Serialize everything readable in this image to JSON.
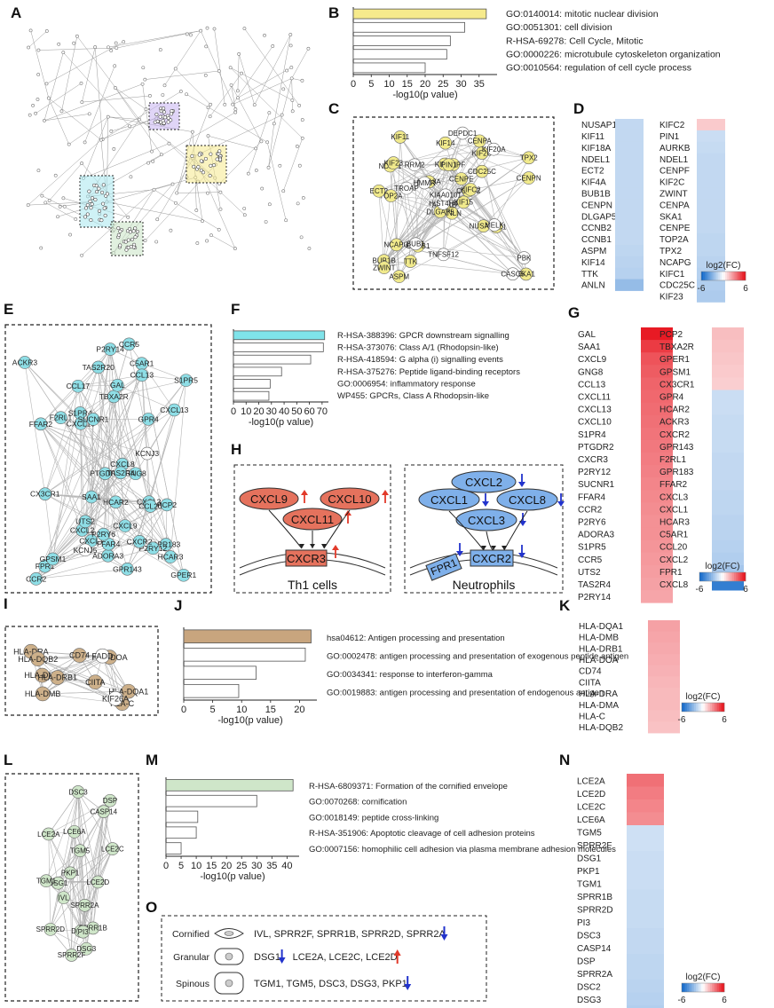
{
  "panel_letters": [
    "A",
    "B",
    "C",
    "D",
    "E",
    "F",
    "G",
    "H",
    "I",
    "J",
    "K",
    "L",
    "M",
    "N",
    "O"
  ],
  "colors": {
    "B_highlight": "#f6ea8c",
    "F_highlight": "#7fe3ea",
    "J_highlight": "#c8a57e",
    "M_highlight": "#cfe6c9",
    "C_nodes": "#f1ea8c",
    "E_nodes": "#8edee6",
    "I_nodes": "#cdb08a",
    "L_nodes": "#cfe6c9",
    "up": "#e23a2a",
    "down": "#2233cc",
    "H_red": "#e5725d",
    "H_blue": "#7fb0ea"
  },
  "chart_data": [
    {
      "type": "bar",
      "panel": "B",
      "categories": [
        "GO:0140014: mitotic nuclear division",
        "GO:0051301: cell division",
        "R-HSA-69278: Cell Cycle, Mitotic",
        "GO:0000226: microtubule cytoskeleton organization",
        "GO:0010564: regulation of cell cycle process"
      ],
      "values": [
        37,
        31,
        27,
        26,
        20
      ],
      "xlabel": "-log10(p value)",
      "xlim": [
        0,
        40
      ],
      "ticks": [
        0,
        5,
        10,
        15,
        20,
        25,
        30,
        35
      ]
    },
    {
      "type": "bar",
      "panel": "F",
      "categories": [
        "R-HSA-388396: GPCR downstream signalling",
        "R-HSA-373076: Class A/1 (Rhodopsin-like)",
        "R-HSA-418594: G alpha (i) signalling events",
        "R-HSA-375276: Peptide ligand-binding receptors",
        "GO:0006954: inflammatory response",
        "WP455: GPCRs, Class A Rhodopsin-like"
      ],
      "values": [
        72,
        71,
        61,
        38,
        29,
        28
      ],
      "xlabel": "-log10(p value)",
      "xlim": [
        0,
        75
      ],
      "ticks": [
        0,
        10,
        20,
        30,
        40,
        50,
        60,
        70
      ]
    },
    {
      "type": "bar",
      "panel": "J",
      "categories": [
        "hsa04612: Antigen processing and presentation",
        "GO:0002478: antigen processing and presentation of exogenous peptide antigen",
        "GO:0034341: response to interferon-gamma",
        "GO:0019883: antigen processing and presentation of endogenous antigen"
      ],
      "values": [
        22,
        21,
        12.5,
        9.5
      ],
      "xlabel": "-log10(p value)",
      "xlim": [
        0,
        23
      ],
      "ticks": [
        0,
        5,
        10,
        15,
        20
      ]
    },
    {
      "type": "bar",
      "panel": "M",
      "categories": [
        "R-HSA-6809371: Formation of the cornified envelope",
        "GO:0070268: cornification",
        "GO:0018149: peptide cross-linking",
        "R-HSA-351906: Apoptotic cleavage of cell adhesion  proteins",
        "GO:0007156: homophilic cell adhesion via plasma membrane adhesion molecules"
      ],
      "values": [
        42,
        30,
        10.5,
        10,
        5
      ],
      "xlabel": "-log10(p value)",
      "xlim": [
        0,
        44
      ],
      "ticks": [
        0,
        5,
        10,
        15,
        20,
        25,
        30,
        35,
        40
      ]
    },
    {
      "type": "heatmap",
      "panel": "D",
      "columns": [
        {
          "genes": [
            "NUSAP1",
            "KIF11",
            "KIF18A",
            "NDEL1",
            "ECT2",
            "KIF4A",
            "BUB1B",
            "CENPN",
            "DLGAP5",
            "CCNB2",
            "CCNB1",
            "ASPM",
            "KIF14",
            "TTK",
            "ANLN"
          ],
          "values": [
            -1.5,
            -1.5,
            -1.5,
            -1.5,
            -1.5,
            -1.5,
            -1.5,
            -1.5,
            -1.5,
            -1.5,
            -1.5,
            -1.6,
            -1.7,
            -1.8,
            -2.6
          ]
        },
        {
          "genes": [
            "KIFC2",
            "PIN1",
            "AURKB",
            "NDEL1",
            "CENPF",
            "KIF2C",
            "ZWINT",
            "CENPA",
            "SKA1",
            "CENPE",
            "TOP2A",
            "TPX2",
            "NCAPG",
            "KIFC1",
            "CDC25C",
            "KIF23"
          ],
          "values": [
            1.3,
            -1.3,
            -1.4,
            -1.5,
            -1.5,
            -1.5,
            -1.5,
            -1.5,
            -1.5,
            -1.5,
            -1.6,
            -1.6,
            -1.7,
            -1.8,
            -1.9,
            -2.0
          ]
        }
      ],
      "scale_label": "log2(FC)",
      "scale": [
        -6,
        6
      ]
    },
    {
      "type": "heatmap",
      "panel": "G",
      "columns": [
        {
          "genes": [
            "GAL",
            "SAA1",
            "CXCL9",
            "GNG8",
            "CCL13",
            "CXCL11",
            "CXCL13",
            "CXCL10",
            "S1PR4",
            "PTGDR2",
            "CXCR3",
            "P2RY12",
            "SUCNR1",
            "FFAR4",
            "CCR2",
            "P2RY6",
            "ADORA3",
            "S1PR5",
            "CCR5",
            "UTS2",
            "TAS2R4",
            "P2RY14"
          ],
          "values": [
            5.6,
            4.8,
            4.2,
            4.0,
            3.8,
            3.7,
            3.6,
            3.5,
            3.4,
            3.3,
            3.2,
            3.1,
            3.0,
            2.9,
            2.8,
            2.7,
            2.7,
            2.6,
            2.5,
            2.4,
            2.3,
            2.2
          ]
        },
        {
          "genes": [
            "PCP2",
            "TBXA2R",
            "GPER1",
            "GPSM1",
            "CX3CR1",
            "GPR4",
            "HCAR2",
            "ACKR3",
            "CXCR2",
            "GPR143",
            "F2RL1",
            "GPR183",
            "FFAR2",
            "CXCL3",
            "CXCL1",
            "HCAR3",
            "C5AR1",
            "CCL20",
            "CXCL2",
            "FPR1",
            "CXCL8"
          ],
          "values": [
            1.6,
            1.5,
            1.4,
            1.3,
            1.2,
            -1.3,
            -1.3,
            -1.4,
            -1.4,
            -1.4,
            -1.5,
            -1.5,
            -1.5,
            -1.6,
            -1.6,
            -1.7,
            -1.7,
            -1.8,
            -1.9,
            -2.2,
            -5.0
          ]
        }
      ],
      "scale_label": "log2(FC)",
      "scale": [
        -6,
        6
      ]
    },
    {
      "type": "heatmap",
      "panel": "K",
      "columns": [
        {
          "genes": [
            "HLA-DQA1",
            "HLA-DMB",
            "HLA-DRB1",
            "HLA-DOA",
            "CD74",
            "CIITA",
            "HLA-DRA",
            "HLA-DMA",
            "HLA-C",
            "HLA-DQB2"
          ],
          "values": [
            2.3,
            2.2,
            2.1,
            2.0,
            1.9,
            1.8,
            1.7,
            1.7,
            1.6,
            1.5
          ]
        }
      ],
      "scale_label": "log2(FC)",
      "scale": [
        -6,
        6
      ]
    },
    {
      "type": "heatmap",
      "panel": "N",
      "columns": [
        {
          "genes": [
            "LCE2A",
            "LCE2D",
            "LCE2C",
            "LCE6A",
            "TGM5",
            "SPRR2F",
            "DSG1",
            "PKP1",
            "TGM1",
            "SPRR1B",
            "SPRR2D",
            "PI3",
            "DSC3",
            "CASP14",
            "DSP",
            "SPRR2A",
            "DSC2",
            "DSG3",
            "IVL"
          ],
          "values": [
            3.5,
            3.2,
            3.0,
            2.8,
            -1.2,
            -1.2,
            -1.3,
            -1.3,
            -1.3,
            -1.4,
            -1.4,
            -1.4,
            -1.5,
            -1.5,
            -1.6,
            -1.6,
            -1.7,
            -1.8,
            -1.9
          ]
        }
      ],
      "scale_label": "log2(FC)",
      "scale": [
        -6,
        6
      ]
    }
  ],
  "network_C": {
    "yellow": [
      "ANLN",
      "NDEL1",
      "AURKB",
      "BUB1B",
      "CCNB2",
      "CCNB1",
      "CENPA",
      "CENPF",
      "KIF2C",
      "KIF15",
      "KIF11",
      "SKA1",
      "TOP2A",
      "TPX2",
      "DLGAP5",
      "CDC25C",
      "ASPM",
      "KIF4A",
      "CENPE",
      "NCAPG",
      "KIF18A",
      "ZWINT",
      "TTK",
      "PIN1",
      "KIFC2",
      "KIFC1",
      "KIF23",
      "KIF14",
      "ECT2",
      "NUSAP1",
      "CENPN"
    ],
    "white": [
      "HIST4H4",
      "TNFSF12",
      "KIAA0101",
      "RRM2",
      "KIF20A",
      "BUB1",
      "CASC5",
      "PBK",
      "MELK",
      "DEPDC1",
      "HMMR",
      "TROAP"
    ]
  },
  "network_E": {
    "cyan": [
      "FPR1",
      "PCP2",
      "CXCL8",
      "HCAR2",
      "TAS2R20",
      "CCR5",
      "GPR183",
      "C5AR1",
      "P2RY12",
      "CXCL2",
      "GPER1",
      "CXCL10",
      "CXCL1",
      "P2RY14",
      "CXCR2",
      "S1PR4",
      "CXCL3",
      "CX3CR1",
      "PTGDR2",
      "S1PR5",
      "ACKR3",
      "GPSM1",
      "ADORA3",
      "GNG8",
      "CCL20",
      "CCL13",
      "SUCNR1",
      "TBXA2R",
      "CXCL13",
      "CXCL9",
      "HCAR3",
      "SAA1",
      "GAL",
      "CCR2",
      "TAS2R4",
      "GPR143",
      "FFAR4",
      "GPR4",
      "FFAR2",
      "P2RY6",
      "F2RL1",
      "UTS2",
      "CCL17"
    ],
    "white": [
      "KCNJ5",
      "KCNJ3"
    ]
  },
  "network_I": {
    "brown": [
      "HLA-C",
      "HLA-DMA",
      "CIITA",
      "HLA-DRA",
      "HLA-DQA1",
      "HLA-DQB2",
      "HLA-DMB",
      "HLA-DRB1",
      "HLA-DOA",
      "CD74"
    ],
    "white": [
      "FADD",
      "KIF26A"
    ]
  },
  "network_L": {
    "green": [
      "DSC3",
      "PKP1",
      "DSG3",
      "DSC2",
      "DSG1",
      "SPRR2A",
      "SPRR2F",
      "DSP",
      "SPRR1B",
      "PI3",
      "IVL",
      "TGM1",
      "SPRR2D",
      "LCE2A",
      "LCE6A",
      "CASP14",
      "LCE2D",
      "LCE2C",
      "TGM5"
    ]
  },
  "panel_H": {
    "left_ligands": [
      "CXCL9",
      "CXCL10",
      "CXCL11"
    ],
    "left_receptor": "CXCR3",
    "left_cell": "Th1 cells",
    "right_ligands": [
      "CXCL2",
      "CXCL1",
      "CXCL8",
      "CXCL3"
    ],
    "right_receptors": [
      "FPR1",
      "CXCR2"
    ],
    "right_cell": "Neutrophils"
  },
  "panel_O": {
    "layers": [
      {
        "name": "Cornified",
        "down": "IVL, SPRR2F, SPRR1B, SPRR2D, SPRR2A"
      },
      {
        "name": "Granular",
        "down": "DSG1",
        "up": "LCE2A, LCE2C, LCE2D"
      },
      {
        "name": "Spinous",
        "down": "TGM1, TGM5, DSC3, DSG3, PKP1"
      }
    ]
  }
}
